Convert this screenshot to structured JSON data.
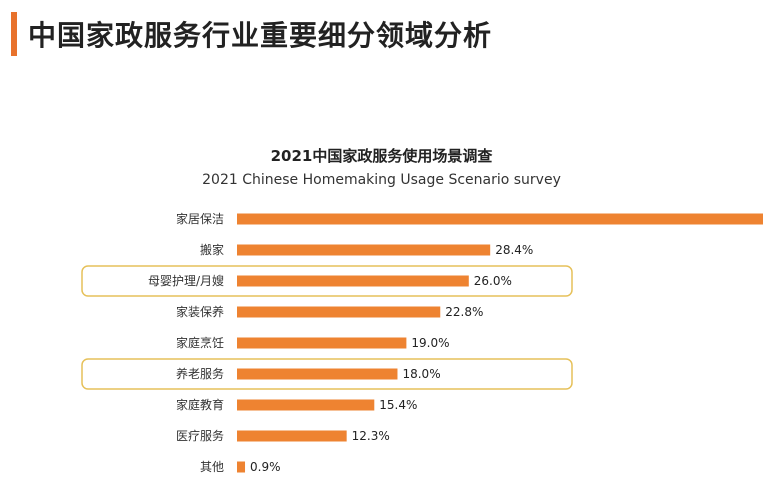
{
  "page": {
    "title": "中国家政服务行业重要细分领域分析"
  },
  "colors": {
    "accent": "#E8722C",
    "bar": "#EE8331",
    "highlight_border": "#E6C15A"
  },
  "chart_data": {
    "type": "bar",
    "orientation": "horizontal",
    "title": "2021中国家政服务使用场景调查",
    "subtitle": "2021 Chinese Homemaking Usage Scenario survey",
    "categories": [
      "家居保洁",
      "搬家",
      "母婴护理/月嫂",
      "家装保养",
      "家庭烹饪",
      "养老服务",
      "家庭教育",
      "医疗服务",
      "其他"
    ],
    "values": [
      59.0,
      28.4,
      26.0,
      22.8,
      19.0,
      18.0,
      15.4,
      12.3,
      0.9
    ],
    "value_labels": [
      "",
      "28.4%",
      "26.0%",
      "22.8%",
      "19.0%",
      "18.0%",
      "15.4%",
      "12.3%",
      "0.9%"
    ],
    "highlighted": [
      "母婴护理/月嫂",
      "养老服务"
    ],
    "grid": false,
    "legend": "none"
  }
}
